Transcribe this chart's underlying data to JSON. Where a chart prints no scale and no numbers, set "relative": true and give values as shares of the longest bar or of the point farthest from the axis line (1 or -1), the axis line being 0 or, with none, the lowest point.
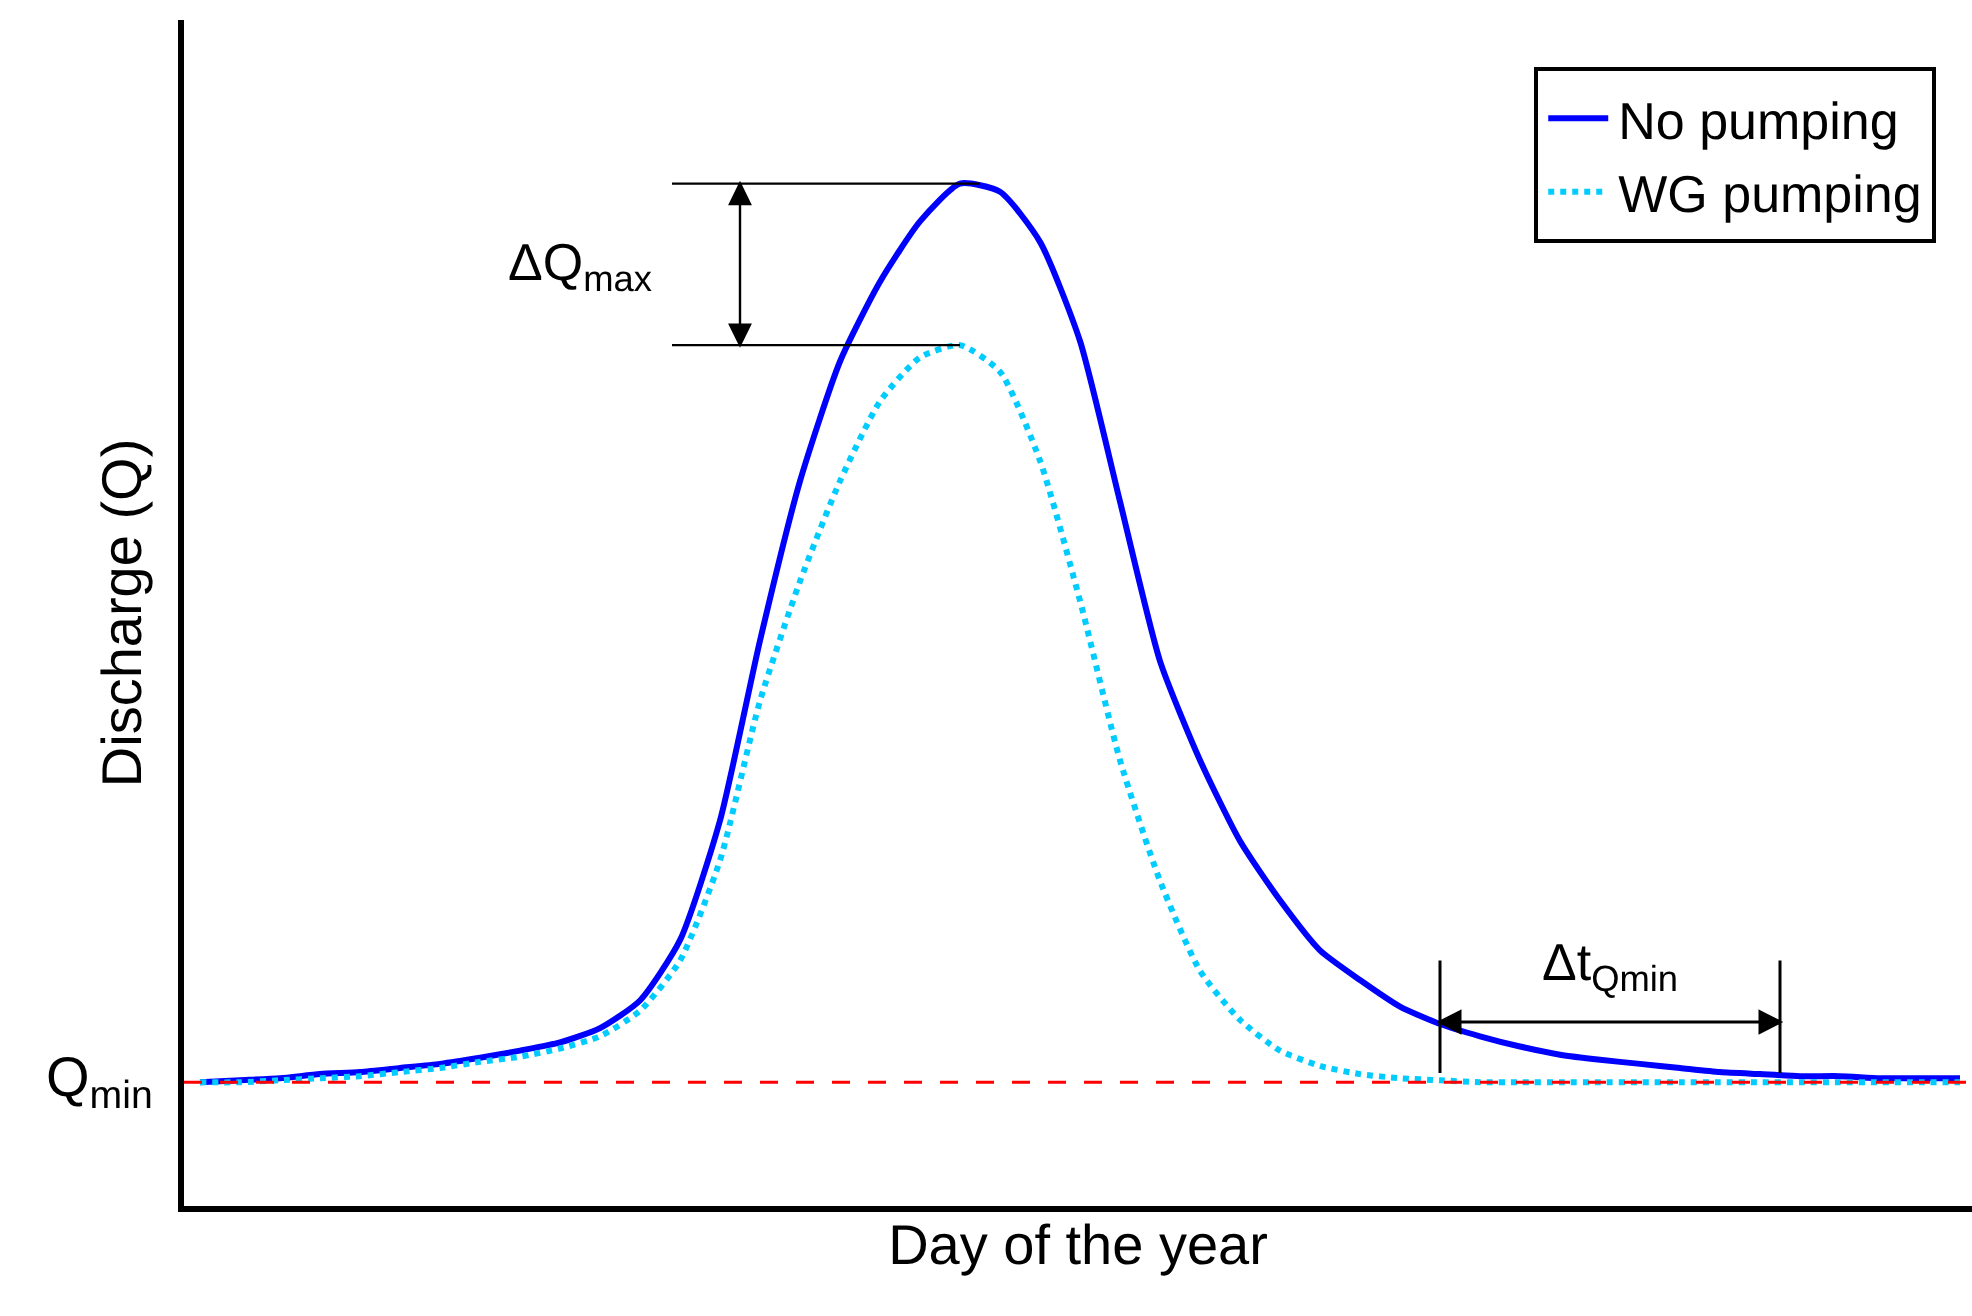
{
  "chart_data": {
    "type": "line",
    "relative": true,
    "xlabel": "Day of the year",
    "ylabel": "Discharge (Q)",
    "categories": [
      null,
      null,
      null,
      null,
      null,
      null,
      null,
      null,
      null,
      null,
      null,
      null,
      null,
      null,
      null,
      null,
      null,
      null,
      null,
      null,
      null,
      null,
      null,
      null,
      null,
      null,
      null,
      null,
      null,
      null,
      null,
      null,
      null,
      null,
      null,
      null,
      null,
      null,
      null,
      null,
      null,
      null,
      null,
      null,
      null
    ],
    "series": [
      {
        "name": "No pumping",
        "color": "#0000ff",
        "line_style": "solid",
        "values": [
          0.121,
          0.123,
          0.125,
          0.129,
          0.131,
          0.135,
          0.139,
          0.145,
          0.152,
          0.16,
          0.174,
          0.201,
          0.26,
          0.377,
          0.553,
          0.709,
          0.826,
          0.904,
          0.963,
          1.0,
          0.992,
          0.943,
          0.846,
          0.689,
          0.533,
          0.436,
          0.357,
          0.299,
          0.25,
          0.221,
          0.195,
          0.178,
          0.166,
          0.156,
          0.148,
          0.143,
          0.139,
          0.135,
          0.131,
          0.129,
          0.127,
          0.127,
          0.125,
          0.125,
          0.125
        ]
      },
      {
        "name": "WG pumping",
        "color": "#00ccff",
        "line_style": "dotted",
        "values": [
          0.121,
          0.121,
          0.123,
          0.125,
          0.127,
          0.131,
          0.135,
          0.141,
          0.146,
          0.154,
          0.166,
          0.191,
          0.24,
          0.338,
          0.494,
          0.611,
          0.709,
          0.787,
          0.83,
          0.842,
          0.816,
          0.729,
          0.592,
          0.436,
          0.318,
          0.23,
          0.182,
          0.152,
          0.137,
          0.129,
          0.125,
          0.123,
          0.121,
          0.121,
          0.121,
          0.121,
          0.121,
          0.121,
          0.121,
          0.121,
          0.121,
          0.121,
          0.121,
          0.121,
          0.121
        ]
      }
    ],
    "ref_lines": [
      {
        "axis": "y",
        "value": 0.121,
        "label": "Q$_{min}$",
        "color": "#ff0000",
        "line_style": "dashed"
      }
    ],
    "annotations": [
      "ΔQ$_{max}$",
      "Δt$_{Qmin}$"
    ],
    "legend": "top right",
    "tick_labels": false,
    "marker": "none"
  }
}
